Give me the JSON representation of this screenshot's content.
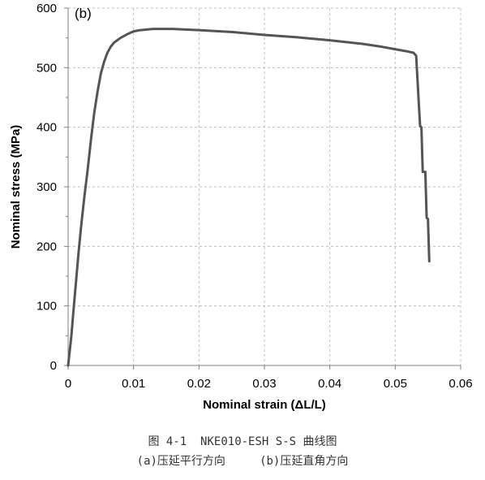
{
  "chart_data": {
    "type": "line",
    "panel_label": "(b)",
    "title": "",
    "xlabel": "Nominal strain (ΔL/L)",
    "ylabel": "Nominal stress (MPa)",
    "xlim": [
      0,
      0.06
    ],
    "ylim": [
      0,
      600
    ],
    "x_ticks": [
      "0",
      "0.01",
      "0.02",
      "0.03",
      "0.04",
      "0.05",
      "0.06"
    ],
    "y_ticks": [
      "0",
      "100",
      "200",
      "300",
      "400",
      "500",
      "600"
    ],
    "grid": true,
    "grid_style": "dashed",
    "line_color": "#555555",
    "series": [
      {
        "x": [
          0,
          0.0002,
          0.0005,
          0.0008,
          0.0012,
          0.0016,
          0.002,
          0.0025,
          0.003,
          0.0035,
          0.004,
          0.0045,
          0.005,
          0.0055,
          0.006,
          0.0065,
          0.007,
          0.008,
          0.009,
          0.01,
          0.011,
          0.012,
          0.013,
          0.014,
          0.015,
          0.016,
          0.018,
          0.02,
          0.025,
          0.03,
          0.035,
          0.04,
          0.045,
          0.048,
          0.05,
          0.052,
          0.0528,
          0.0532,
          0.0534,
          0.0536,
          0.0538,
          0.054,
          0.0542,
          0.0546,
          0.0548,
          0.055,
          0.0552
        ],
        "y": [
          0,
          20,
          50,
          90,
          140,
          190,
          235,
          285,
          330,
          380,
          425,
          460,
          490,
          510,
          525,
          535,
          542,
          550,
          556,
          561,
          563,
          564,
          565,
          565,
          565,
          565,
          564,
          563,
          560,
          555,
          551,
          546,
          540,
          535,
          531,
          527,
          525,
          520,
          480,
          440,
          402,
          400,
          325,
          325,
          248,
          246,
          175
        ]
      }
    ]
  },
  "caption": {
    "line1": "图 4-1  NKE010-ESH S-S 曲线图",
    "line2": "(a)压延平行方向     (b)压延直角方向"
  }
}
